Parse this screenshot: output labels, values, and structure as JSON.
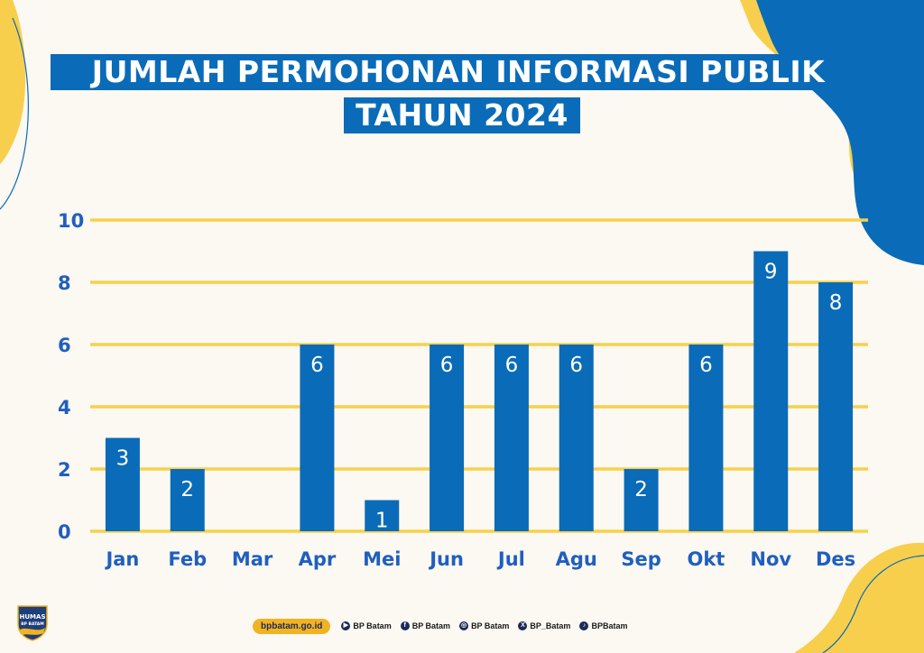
{
  "title": {
    "line1": "JUMLAH PERMOHONAN INFORMASI PUBLIK",
    "line2": "TAHUN 2024"
  },
  "colors": {
    "background": "#fcf8f2",
    "bar": "#0a6bb8",
    "gridline": "#f7d14a",
    "axis_text": "#1f5fbf",
    "accent_yellow": "#f7cf4c"
  },
  "chart_data": {
    "type": "bar",
    "categories": [
      "Jan",
      "Feb",
      "Mar",
      "Apr",
      "Mei",
      "Jun",
      "Jul",
      "Agu",
      "Sep",
      "Okt",
      "Nov",
      "Des"
    ],
    "values": [
      3,
      2,
      0,
      6,
      1,
      6,
      6,
      6,
      2,
      6,
      9,
      8
    ],
    "data_labels": [
      "3",
      "2",
      "",
      "6",
      "1",
      "6",
      "6",
      "6",
      "2",
      "6",
      "9",
      "8"
    ],
    "yticks": [
      0,
      2,
      4,
      6,
      8,
      10
    ],
    "ylim": [
      0,
      10
    ],
    "grid": true,
    "xlabel": "",
    "ylabel": ""
  },
  "footer": {
    "website": "bpbatam.go.id",
    "socials": [
      {
        "icon": "youtube-icon",
        "glyph": "▶",
        "label": "BP Batam"
      },
      {
        "icon": "facebook-icon",
        "glyph": "f",
        "label": "BP Batam"
      },
      {
        "icon": "instagram-icon",
        "glyph": "◎",
        "label": "BP Batam"
      },
      {
        "icon": "x-icon",
        "glyph": "X",
        "label": "BP_Batam"
      },
      {
        "icon": "tiktok-icon",
        "glyph": "♪",
        "label": "BPBatam"
      }
    ]
  },
  "logo": {
    "line1": "HUMAS",
    "line2": "BP BATAM"
  }
}
